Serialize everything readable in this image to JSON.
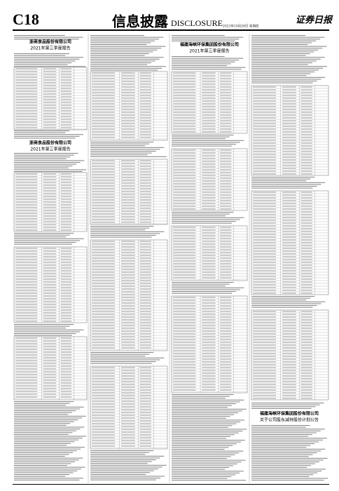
{
  "header": {
    "page": "C18",
    "section": "信息披露",
    "section_en": "DISCLOSURE",
    "masthead": "证券日报",
    "date": "2021年10月28日 星期四"
  },
  "articles": [
    {
      "company": "浙商食品股份有限公司",
      "title": "2021年第三季度报告"
    },
    {
      "company": "浙商食品股份有限公司",
      "title": "2021年第三季度报告"
    },
    {
      "company": "福建海峡环保集团股份有限公司",
      "title": "2021年第三季度报告"
    },
    {
      "company": "福建海峡环保集团股份有限公司",
      "title": "关于公司股东减持股份计划公告"
    }
  ]
}
